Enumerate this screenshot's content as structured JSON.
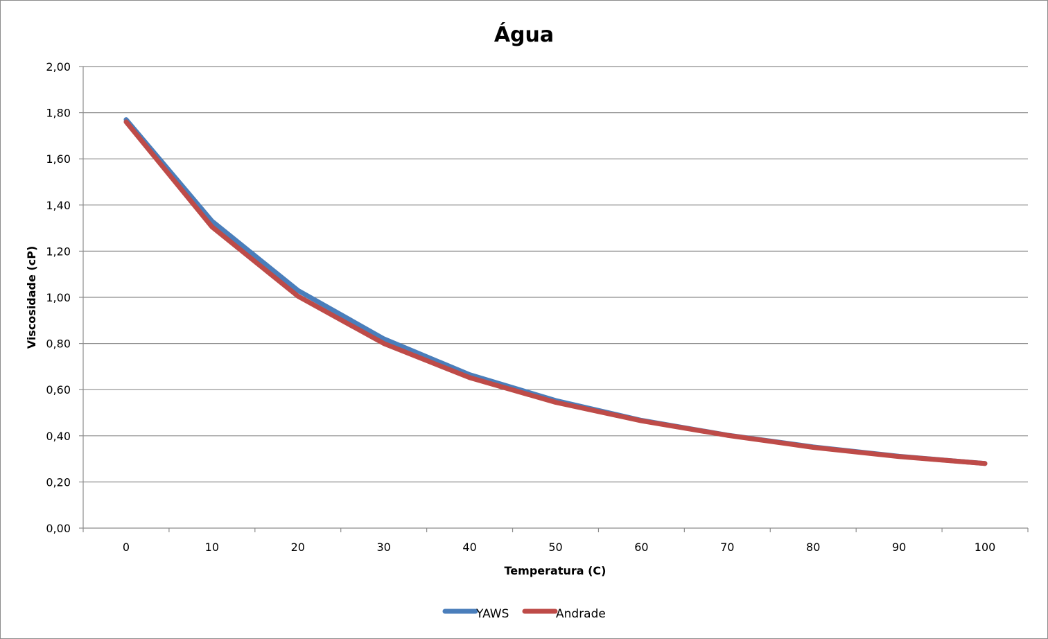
{
  "chart_data": {
    "type": "line",
    "title": "Água",
    "xlabel": "Temperatura (C)",
    "ylabel": "Viscosidade (cP)",
    "categories": [
      "0",
      "10",
      "20",
      "30",
      "40",
      "50",
      "60",
      "70",
      "80",
      "90",
      "100"
    ],
    "x": [
      0,
      10,
      20,
      30,
      40,
      50,
      60,
      70,
      80,
      90,
      100
    ],
    "ylim": [
      0,
      2
    ],
    "yticks": [
      "0,00",
      "0,20",
      "0,40",
      "0,60",
      "0,80",
      "1,00",
      "1,20",
      "1,40",
      "1,60",
      "1,80",
      "2,00"
    ],
    "grid": true,
    "legend_position": "bottom",
    "series": [
      {
        "name": "YAWS",
        "color": "#4a7ebb",
        "values": [
          1.77,
          1.33,
          1.03,
          0.82,
          0.665,
          0.553,
          0.467,
          0.403,
          0.352,
          0.311,
          0.28
        ]
      },
      {
        "name": "Andrade",
        "color": "#be4b48",
        "values": [
          1.76,
          1.305,
          1.005,
          0.8,
          0.652,
          0.545,
          0.465,
          0.402,
          0.35,
          0.31,
          0.28
        ]
      }
    ]
  }
}
